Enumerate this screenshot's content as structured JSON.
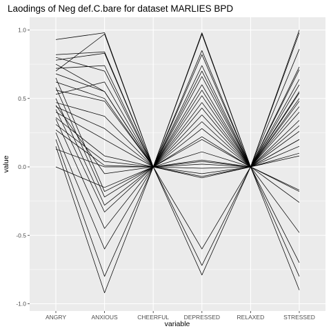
{
  "chart_data": {
    "type": "line",
    "title": "Laodings of Neg def.C.bare for dataset MARLIES BPD",
    "xlabel": "variable",
    "ylabel": "value",
    "categories": [
      "ANGRY",
      "ANXIOUS",
      "CHEERFUL",
      "DEPRESSED",
      "RELAXED",
      "STRESSED"
    ],
    "ylim": [
      -1.0,
      1.0
    ],
    "yticks": [
      -1.0,
      -0.5,
      0.0,
      0.5,
      1.0
    ],
    "ytick_labels": [
      "-1.0",
      "-0.5",
      "0.0",
      "0.5",
      "1.0"
    ],
    "grid": true,
    "legend": "none",
    "colors": {
      "panel": "#ebebeb",
      "line": "#000000",
      "grid": "#ffffff"
    },
    "series": [
      {
        "values": [
          0.93,
          0.98,
          0.0,
          0.98,
          0.0,
          1.0
        ]
      },
      {
        "values": [
          0.82,
          0.84,
          0.0,
          0.85,
          0.0,
          0.73
        ]
      },
      {
        "values": [
          0.78,
          0.83,
          0.0,
          0.82,
          0.0,
          0.71
        ]
      },
      {
        "values": [
          0.72,
          0.74,
          0.0,
          0.74,
          0.0,
          0.64
        ]
      },
      {
        "values": [
          0.68,
          0.55,
          0.0,
          0.66,
          0.0,
          0.54
        ]
      },
      {
        "values": [
          0.62,
          0.5,
          0.0,
          0.6,
          0.0,
          0.5
        ]
      },
      {
        "values": [
          0.56,
          0.48,
          0.0,
          0.56,
          0.0,
          0.44
        ]
      },
      {
        "values": [
          0.47,
          0.37,
          0.0,
          0.52,
          0.0,
          0.4
        ]
      },
      {
        "values": [
          0.44,
          0.28,
          0.0,
          0.47,
          0.0,
          0.34
        ]
      },
      {
        "values": [
          0.4,
          0.2,
          0.0,
          0.43,
          0.0,
          0.3
        ]
      },
      {
        "values": [
          0.36,
          0.08,
          0.0,
          0.38,
          0.0,
          0.26
        ]
      },
      {
        "values": [
          0.31,
          0.04,
          0.0,
          0.33,
          0.0,
          0.2
        ]
      },
      {
        "values": [
          0.27,
          0.01,
          0.0,
          0.28,
          0.0,
          0.15
        ]
      },
      {
        "values": [
          0.13,
          0.0,
          0.0,
          0.22,
          0.0,
          0.1
        ]
      },
      {
        "values": [
          0.0,
          -0.15,
          0.0,
          0.11,
          0.0,
          0.08
        ]
      },
      {
        "values": [
          0.8,
          0.7,
          0.0,
          0.05,
          0.0,
          0.55
        ]
      },
      {
        "values": [
          0.65,
          -0.18,
          0.0,
          0.04,
          0.0,
          -0.17
        ]
      },
      {
        "values": [
          0.58,
          -0.22,
          0.0,
          0.02,
          0.0,
          -0.26
        ]
      },
      {
        "values": [
          0.5,
          -0.28,
          0.0,
          -0.01,
          0.0,
          -0.48
        ]
      },
      {
        "values": [
          0.42,
          -0.33,
          0.0,
          -0.05,
          0.0,
          -0.7
        ]
      },
      {
        "values": [
          0.35,
          -0.45,
          0.0,
          -0.08,
          0.0,
          -0.8
        ]
      },
      {
        "values": [
          0.25,
          -0.6,
          0.0,
          -0.6,
          0.0,
          -0.9
        ]
      },
      {
        "values": [
          0.2,
          -0.8,
          0.0,
          -0.72,
          0.0,
          -0.18
        ]
      },
      {
        "values": [
          0.15,
          -0.92,
          0.0,
          -0.79,
          0.0,
          0.86
        ]
      },
      {
        "values": [
          0.7,
          0.97,
          0.0,
          0.97,
          0.0,
          0.98
        ]
      },
      {
        "values": [
          0.53,
          0.62,
          0.0,
          0.2,
          0.0,
          0.48
        ]
      },
      {
        "values": [
          0.45,
          -0.05,
          0.0,
          -0.07,
          0.0,
          0.2
        ]
      },
      {
        "values": [
          0.75,
          0.55,
          0.0,
          0.7,
          0.0,
          0.6
        ]
      }
    ]
  }
}
